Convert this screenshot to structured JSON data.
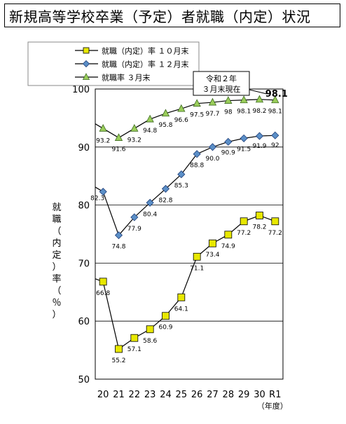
{
  "title": "新規高等学校卒業（予定）者就職（内定）状況",
  "chart_data": {
    "type": "line",
    "ylabel": "就職（内定）率（％）",
    "xlabel_note": "（年度）",
    "categories": [
      "20",
      "21",
      "22",
      "23",
      "24",
      "25",
      "26",
      "27",
      "28",
      "29",
      "30",
      "R1"
    ],
    "ylim": [
      50,
      100
    ],
    "yticks": [
      50,
      60,
      70,
      80,
      90,
      100
    ],
    "grid_y": true,
    "legend_position": "top-left",
    "series": [
      {
        "name": "就職（内定）率 １０月末",
        "marker": "square",
        "color": "#e8e800",
        "values": [
          66.8,
          55.2,
          57.1,
          58.6,
          60.9,
          64.1,
          71.1,
          73.4,
          74.9,
          77.2,
          78.2,
          77.2
        ],
        "labels": [
          "66.8",
          "55.2",
          "57.1",
          "58.6",
          "60.9",
          "64.1",
          "71.1",
          "73.4",
          "74.9",
          "77.2",
          "78.2",
          "77.2"
        ]
      },
      {
        "name": "就職（内定）率 １２月末",
        "marker": "diamond",
        "color": "#5b8fc7",
        "values": [
          82.3,
          74.8,
          77.9,
          80.4,
          82.8,
          85.3,
          88.8,
          90.0,
          90.9,
          91.5,
          91.9,
          92.0
        ],
        "labels": [
          "82.3",
          "74.8",
          "77.9",
          "80.4",
          "82.8",
          "85.3",
          "88.8",
          "90.0",
          "90.9",
          "91.5",
          "91.9",
          "92"
        ]
      },
      {
        "name": "就職率 ３月末",
        "marker": "triangle",
        "color": "#9acd5a",
        "values": [
          93.2,
          91.6,
          93.2,
          94.8,
          95.8,
          96.6,
          97.5,
          97.7,
          98.0,
          98.1,
          98.2,
          98.1
        ],
        "labels": [
          "93.2",
          "91.6",
          "93.2",
          "94.8",
          "95.8",
          "96.6",
          "97.5",
          "97.7",
          "98",
          "98.1",
          "98.2",
          "98.1"
        ]
      }
    ],
    "lead_in": {
      "10月末": 67.3,
      "12月末": 83.1,
      "3月末": 94.0
    },
    "callout": {
      "line1": "令和２年",
      "line2": "３月末現在",
      "highlight_value": "98.1"
    }
  }
}
